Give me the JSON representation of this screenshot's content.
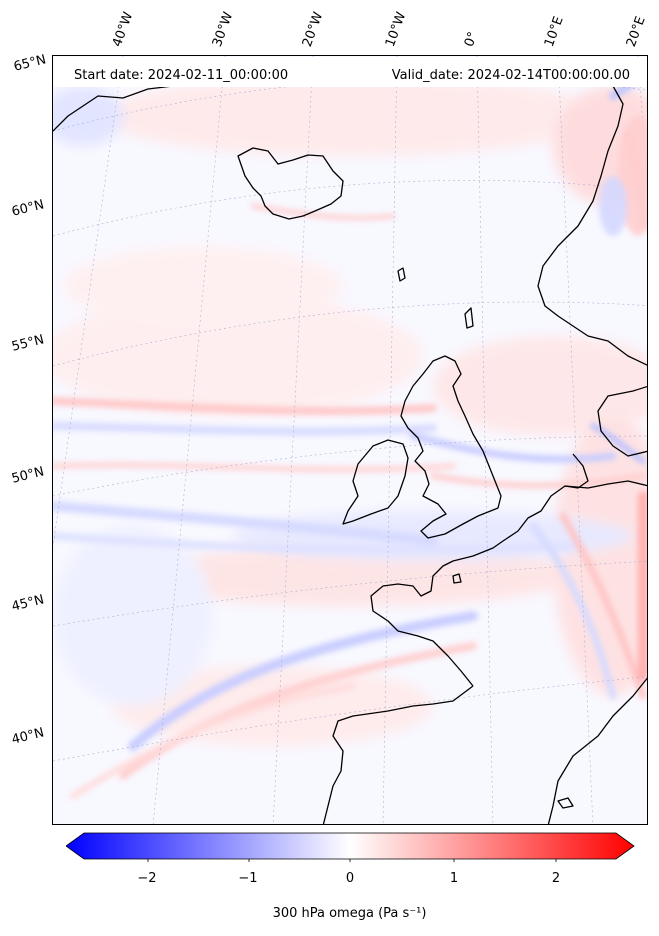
{
  "header": {
    "start_date": "Start date: 2024-02-11_00:00:00",
    "valid_date": "Valid_date: 2024-02-14T00:00:00.00"
  },
  "longitude_labels": [
    "40°W",
    "30°W",
    "20°W",
    "10°W",
    "0°",
    "10°E",
    "20°E"
  ],
  "latitude_labels": [
    "65°N",
    "60°N",
    "55°N",
    "50°N",
    "45°N",
    "40°N"
  ],
  "colorbar": {
    "ticks": [
      "−2",
      "−1",
      "0",
      "1",
      "2"
    ],
    "label": "300 hPa omega (Pa s⁻¹)",
    "min": -2.6,
    "max": 2.6,
    "colormap": "bwr",
    "colors": {
      "negative": "#0000ff",
      "zero": "#ffffff",
      "positive": "#ff0000"
    }
  },
  "map": {
    "projection": "conic",
    "field": "300 hPa omega",
    "coastline_color": "#000000",
    "gridline_style": "dotted"
  }
}
